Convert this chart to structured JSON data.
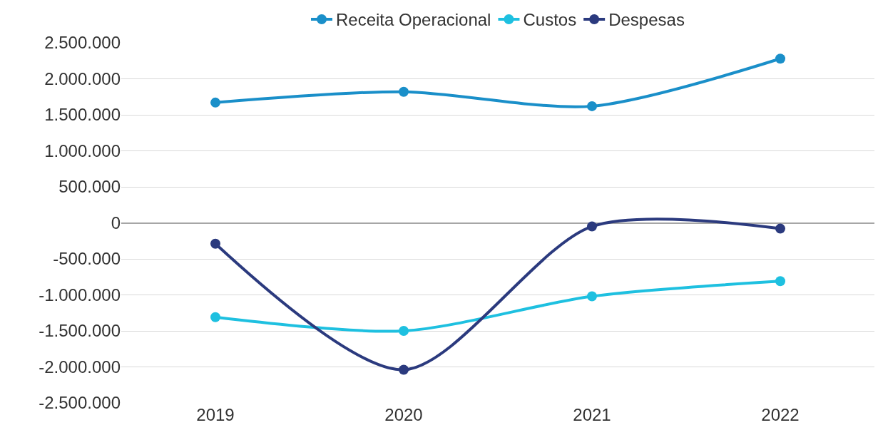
{
  "chart_data": {
    "type": "line",
    "categories": [
      "2019",
      "2020",
      "2021",
      "2022"
    ],
    "series": [
      {
        "name": "Receita Operacional",
        "color": "#1a8fc9",
        "values": [
          1670000,
          1820000,
          1620000,
          2280000
        ]
      },
      {
        "name": "Custos",
        "color": "#1ec0e0",
        "values": [
          -1310000,
          -1500000,
          -1020000,
          -810000
        ]
      },
      {
        "name": "Despesas",
        "color": "#2b3a7e",
        "values": [
          -290000,
          -2040000,
          -50000,
          -80000
        ]
      }
    ],
    "ylim": [
      -2500000,
      2500000
    ],
    "yticks": [
      {
        "value": -2500000,
        "label": "-2.500.000"
      },
      {
        "value": -2000000,
        "label": "-2.000.000"
      },
      {
        "value": -1500000,
        "label": "-1.500.000"
      },
      {
        "value": -1000000,
        "label": "-1.000.000"
      },
      {
        "value": -500000,
        "label": "-500.000"
      },
      0,
      {
        "value": 500000,
        "label": "500.000"
      },
      {
        "value": 1000000,
        "label": "1.000.000"
      },
      {
        "value": 1500000,
        "label": "1.500.000"
      },
      {
        "value": 2000000,
        "label": "2.000.000"
      },
      {
        "value": 2500000,
        "label": "2.500.000"
      }
    ],
    "grid": "y",
    "legend": "top",
    "marker": "circle",
    "line_style": "solid"
  }
}
